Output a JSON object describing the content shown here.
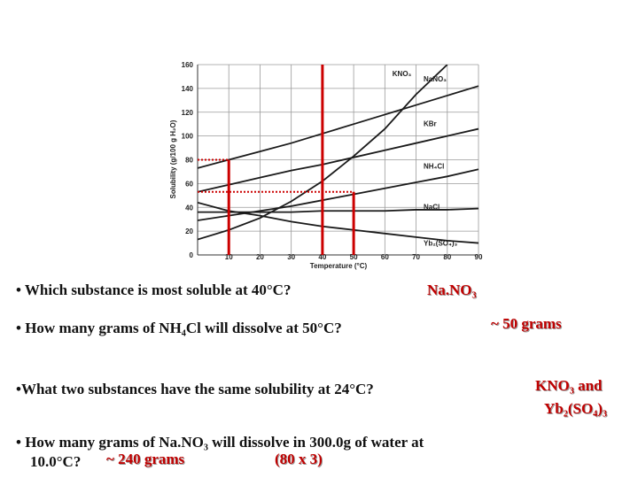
{
  "chart_data": {
    "type": "line",
    "x_label": "Temperature (°C)",
    "y_label": "Solubility (g/100 g H₂O)",
    "x": [
      0,
      10,
      20,
      30,
      40,
      50,
      60,
      70,
      80,
      90
    ],
    "xlim": [
      0,
      90
    ],
    "xticks": [
      10,
      20,
      30,
      40,
      50,
      60,
      70,
      80,
      90
    ],
    "ylim": [
      0,
      160
    ],
    "yticks": [
      0,
      20,
      40,
      60,
      80,
      100,
      120,
      140,
      160
    ],
    "grid": true,
    "series": [
      {
        "name": "KNO₃",
        "color": "#1a1a1a",
        "values": [
          13,
          21,
          31,
          45,
          62,
          83,
          106,
          135,
          160,
          null
        ]
      },
      {
        "name": "NaNO₃",
        "color": "#1a1a1a",
        "values": [
          73,
          80,
          87,
          94,
          102,
          110,
          118,
          126,
          134,
          142
        ]
      },
      {
        "name": "KBr",
        "color": "#1a1a1a",
        "values": [
          53,
          59,
          65,
          71,
          76,
          82,
          88,
          94,
          100,
          106
        ]
      },
      {
        "name": "NH₄Cl",
        "color": "#1a1a1a",
        "values": [
          29,
          33,
          37,
          41,
          46,
          51,
          56,
          61,
          66,
          72
        ]
      },
      {
        "name": "NaCl",
        "color": "#1a1a1a",
        "values": [
          36,
          36,
          36,
          36,
          37,
          37,
          37,
          38,
          38,
          39
        ]
      },
      {
        "name": "Yb₂(SO₄)₃",
        "color": "#1a1a1a",
        "values": [
          44,
          37,
          33,
          28,
          24,
          21,
          18,
          15,
          12,
          10
        ]
      }
    ],
    "guides": [
      {
        "x": 10,
        "y": 80
      },
      {
        "x": 40,
        "y": 160
      },
      {
        "x": 50,
        "y": 53
      }
    ],
    "guide_color": "#cc0000"
  },
  "questions": [
    {
      "lines": [
        "• Which substance is most soluble at 40°C?"
      ],
      "answer": [
        "Na.NO₃"
      ]
    },
    {
      "lines": [
        "• How many grams of NH₄Cl will dissolve at  50°C?"
      ],
      "answer": [
        "~ 50 grams"
      ]
    },
    {
      "lines": [
        "•What two substances have the same solubility at 24°C?"
      ],
      "answer": [
        "KNO₃ and",
        "Yb₂(SO₄)₃"
      ]
    },
    {
      "lines": [
        "• How many grams of Na.NO₃ will dissolve in 300.0g of water at",
        "10.0°C?"
      ],
      "answer": [
        "~ 240 grams",
        "(80 x 3)"
      ]
    }
  ]
}
